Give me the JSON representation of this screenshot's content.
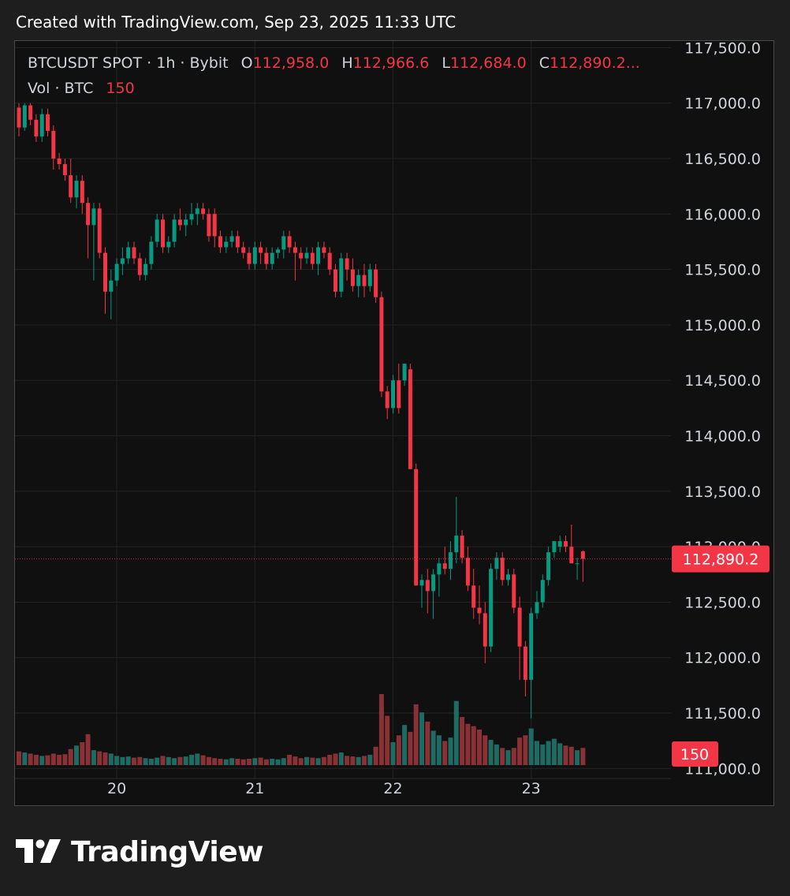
{
  "header": {
    "created_text": "Created with TradingView.com, Sep 23, 2025 11:33 UTC"
  },
  "legend": {
    "symbol": "BTCUSDT SPOT · 1h · Bybit",
    "o_label": "O",
    "o_value": "112,958.0",
    "h_label": "H",
    "h_value": "112,966.6",
    "l_label": "L",
    "l_value": "112,684.0",
    "c_label": "C",
    "c_value": "112,890.2...",
    "vol_label": "Vol · BTC",
    "vol_value": "150"
  },
  "footer": {
    "brand": "TradingView"
  },
  "colors": {
    "up": "#089981",
    "down": "#f23645",
    "up_vol": "#1e6b63",
    "down_vol": "#8a3136",
    "grid": "#232323",
    "text": "#d1d4dc",
    "badge": "#f23645"
  },
  "chart_data": {
    "type": "candlestick",
    "symbol": "BTCUSDT",
    "interval": "1h",
    "exchange": "Bybit",
    "y_ticks": [
      111000,
      111500,
      112000,
      112500,
      113000,
      113500,
      114000,
      114500,
      115000,
      115500,
      116000,
      116500,
      117000,
      117500
    ],
    "y_tick_labels": [
      "111,000.0",
      "111,500.0",
      "112,000.0",
      "112,500.0",
      "113,000.0",
      "113,500.0",
      "114,000.0",
      "114,500.0",
      "115,000.0",
      "115,500.0",
      "116,000.0",
      "116,500.0",
      "117,000.0",
      "117,500.0"
    ],
    "ylim": [
      110910,
      117560
    ],
    "x_ticks": [
      {
        "label": "20",
        "index": 17
      },
      {
        "label": "21",
        "index": 41
      },
      {
        "label": "22",
        "index": 65
      },
      {
        "label": "23",
        "index": 89
      }
    ],
    "last_price": 112890.2,
    "last_price_label": "112,890.2",
    "last_volume_label": "150",
    "volume_max": 620,
    "candles": [
      [
        116960,
        117000,
        116700,
        116780,
        120
      ],
      [
        116780,
        117000,
        116750,
        116980,
        110
      ],
      [
        116980,
        117000,
        116800,
        116850,
        100
      ],
      [
        116850,
        116900,
        116650,
        116700,
        90
      ],
      [
        116700,
        116950,
        116650,
        116900,
        80
      ],
      [
        116900,
        116950,
        116700,
        116750,
        85
      ],
      [
        116750,
        116800,
        116400,
        116500,
        100
      ],
      [
        116500,
        116550,
        116400,
        116450,
        90
      ],
      [
        116450,
        116500,
        116300,
        116350,
        95
      ],
      [
        116350,
        116500,
        116100,
        116150,
        140
      ],
      [
        116150,
        116350,
        116050,
        116300,
        170
      ],
      [
        116300,
        116350,
        116000,
        116100,
        200
      ],
      [
        116100,
        116150,
        115600,
        115900,
        270
      ],
      [
        115900,
        116100,
        115400,
        116050,
        130
      ],
      [
        116050,
        116100,
        115600,
        115650,
        120
      ],
      [
        115650,
        115700,
        115100,
        115300,
        110
      ],
      [
        115300,
        115500,
        115050,
        115400,
        100
      ],
      [
        115400,
        115600,
        115350,
        115550,
        80
      ],
      [
        115550,
        115700,
        115450,
        115600,
        70
      ],
      [
        115600,
        115750,
        115550,
        115700,
        75
      ],
      [
        115700,
        115750,
        115550,
        115600,
        65
      ],
      [
        115600,
        115650,
        115400,
        115450,
        70
      ],
      [
        115450,
        115600,
        115400,
        115550,
        60
      ],
      [
        115550,
        115800,
        115500,
        115750,
        55
      ],
      [
        115750,
        116000,
        115700,
        115950,
        65
      ],
      [
        115950,
        116000,
        115650,
        115700,
        80
      ],
      [
        115700,
        115800,
        115650,
        115750,
        70
      ],
      [
        115750,
        116000,
        115700,
        115950,
        60
      ],
      [
        115950,
        116050,
        115850,
        115900,
        70
      ],
      [
        115900,
        116000,
        115800,
        115950,
        75
      ],
      [
        115950,
        116100,
        115900,
        116000,
        90
      ],
      [
        116000,
        116100,
        115900,
        116050,
        100
      ],
      [
        116050,
        116100,
        115950,
        116000,
        85
      ],
      [
        116000,
        116050,
        115750,
        115800,
        70
      ],
      [
        116000,
        116050,
        115700,
        115800,
        60
      ],
      [
        115800,
        115850,
        115650,
        115700,
        55
      ],
      [
        115700,
        115800,
        115650,
        115750,
        50
      ],
      [
        115750,
        115850,
        115700,
        115800,
        60
      ],
      [
        115800,
        115850,
        115650,
        115700,
        55
      ],
      [
        115700,
        115750,
        115600,
        115650,
        50
      ],
      [
        115650,
        115700,
        115500,
        115550,
        55
      ],
      [
        115550,
        115750,
        115500,
        115700,
        60
      ],
      [
        115700,
        115750,
        115550,
        115650,
        65
      ],
      [
        115650,
        115700,
        115500,
        115550,
        50
      ],
      [
        115550,
        115700,
        115500,
        115650,
        55
      ],
      [
        115650,
        115700,
        115600,
        115680,
        50
      ],
      [
        115680,
        115850,
        115600,
        115800,
        60
      ],
      [
        115800,
        115850,
        115650,
        115700,
        90
      ],
      [
        115700,
        115750,
        115400,
        115650,
        75
      ],
      [
        115650,
        115700,
        115500,
        115600,
        60
      ],
      [
        115600,
        115700,
        115550,
        115650,
        70
      ],
      [
        115650,
        115700,
        115500,
        115550,
        65
      ],
      [
        115550,
        115750,
        115450,
        115700,
        60
      ],
      [
        115700,
        115750,
        115600,
        115650,
        70
      ],
      [
        115650,
        115700,
        115450,
        115500,
        90
      ],
      [
        115500,
        115550,
        115250,
        115300,
        100
      ],
      [
        115300,
        115650,
        115250,
        115600,
        110
      ],
      [
        115600,
        115650,
        115400,
        115500,
        80
      ],
      [
        115500,
        115600,
        115300,
        115350,
        75
      ],
      [
        115350,
        115500,
        115250,
        115450,
        70
      ],
      [
        115450,
        115550,
        115250,
        115350,
        80
      ],
      [
        115350,
        115550,
        115300,
        115500,
        90
      ],
      [
        115500,
        115550,
        115200,
        115250,
        160
      ],
      [
        115250,
        115300,
        114350,
        114400,
        620
      ],
      [
        114400,
        114450,
        114150,
        114250,
        430
      ],
      [
        114250,
        114550,
        114200,
        114500,
        200
      ],
      [
        114500,
        114650,
        114200,
        114250,
        260
      ],
      [
        114500,
        114650,
        114450,
        114650,
        350
      ],
      [
        114600,
        114650,
        113700,
        113700,
        290
      ],
      [
        113700,
        113750,
        112650,
        112650,
        530
      ],
      [
        112650,
        112750,
        112450,
        112700,
        460
      ],
      [
        112700,
        112800,
        112400,
        112600,
        380
      ],
      [
        112600,
        112800,
        112350,
        112750,
        300
      ],
      [
        112750,
        112900,
        112550,
        112850,
        260
      ],
      [
        112850,
        113000,
        112750,
        112800,
        210
      ],
      [
        112800,
        113050,
        112700,
        112950,
        240
      ],
      [
        112950,
        113450,
        112850,
        113100,
        560
      ],
      [
        113100,
        113150,
        112850,
        112900,
        420
      ],
      [
        112900,
        113000,
        112600,
        112650,
        360
      ],
      [
        112650,
        112800,
        112350,
        112450,
        340
      ],
      [
        112450,
        112650,
        112300,
        112400,
        310
      ],
      [
        112400,
        112500,
        111950,
        112100,
        260
      ],
      [
        112100,
        112850,
        112050,
        112800,
        220
      ],
      [
        112800,
        112950,
        112700,
        112900,
        180
      ],
      [
        112900,
        112950,
        112650,
        112700,
        150
      ],
      [
        112700,
        112800,
        112650,
        112750,
        130
      ],
      [
        112750,
        112800,
        112400,
        112450,
        150
      ],
      [
        112450,
        112550,
        111800,
        112100,
        240
      ],
      [
        112100,
        112150,
        111650,
        111800,
        260
      ],
      [
        111800,
        112450,
        111450,
        112400,
        320
      ],
      [
        112400,
        112600,
        112350,
        112500,
        210
      ],
      [
        112500,
        112750,
        112450,
        112700,
        180
      ],
      [
        112700,
        113000,
        112650,
        112950,
        210
      ],
      [
        112950,
        113050,
        112900,
        113050,
        230
      ],
      [
        113000,
        113100,
        112950,
        113050,
        190
      ],
      [
        113050,
        113100,
        112950,
        113000,
        170
      ],
      [
        113000,
        113200,
        112850,
        112850,
        160
      ],
      [
        112850,
        112900,
        112700,
        112850,
        130
      ],
      [
        112958,
        112966.6,
        112684,
        112890.2,
        150
      ]
    ]
  }
}
